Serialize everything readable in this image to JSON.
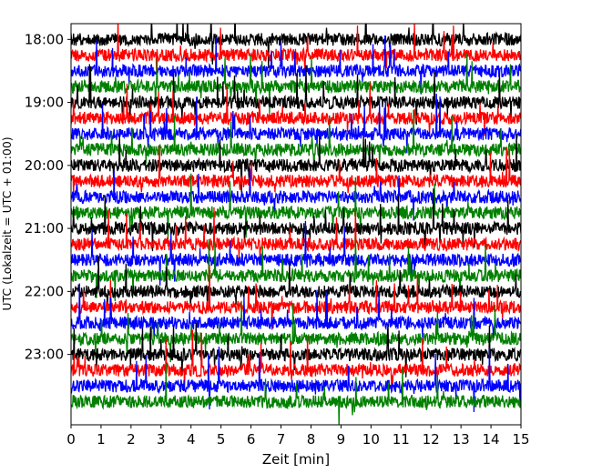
{
  "chart_data": {
    "type": "line",
    "title": "",
    "xlabel": "Zeit  [min]",
    "ylabel": "UTC (Lokalzeit = UTC + 01:00)",
    "xlim": [
      0,
      15
    ],
    "xticks": [
      0,
      1,
      2,
      3,
      4,
      5,
      6,
      7,
      8,
      9,
      10,
      11,
      12,
      13,
      14,
      15
    ],
    "xtick_labels": [
      "0",
      "1",
      "2",
      "3",
      "4",
      "5",
      "6",
      "7",
      "8",
      "9",
      "10",
      "11",
      "12",
      "13",
      "14",
      "15"
    ],
    "y_unit": "minutes of day (UTC)",
    "ylim": [
      1065,
      1447
    ],
    "y_inverted": true,
    "yticks": [
      1080,
      1140,
      1200,
      1260,
      1320,
      1380
    ],
    "ytick_labels": [
      "18:00",
      "19:00",
      "20:00",
      "21:00",
      "22:00",
      "23:00"
    ],
    "row_interval_minutes": 15,
    "row_colors_cycle": [
      "#000000",
      "#ff0000",
      "#0000ff",
      "#008000"
    ],
    "grid": false,
    "legend": "none",
    "description_note": "Helicorder-style seismogram: each horizontal trace spans 15 minutes; rows start every 15 min from 18:00 to 23:45 UTC.",
    "series": [
      {
        "start": "18:00",
        "color": "#000000",
        "offset_utc_minutes": 1080
      },
      {
        "start": "18:15",
        "color": "#ff0000",
        "offset_utc_minutes": 1095
      },
      {
        "start": "18:30",
        "color": "#0000ff",
        "offset_utc_minutes": 1110
      },
      {
        "start": "18:45",
        "color": "#008000",
        "offset_utc_minutes": 1125
      },
      {
        "start": "19:00",
        "color": "#000000",
        "offset_utc_minutes": 1140
      },
      {
        "start": "19:15",
        "color": "#ff0000",
        "offset_utc_minutes": 1155
      },
      {
        "start": "19:30",
        "color": "#0000ff",
        "offset_utc_minutes": 1170
      },
      {
        "start": "19:45",
        "color": "#008000",
        "offset_utc_minutes": 1185
      },
      {
        "start": "20:00",
        "color": "#000000",
        "offset_utc_minutes": 1200
      },
      {
        "start": "20:15",
        "color": "#ff0000",
        "offset_utc_minutes": 1215
      },
      {
        "start": "20:30",
        "color": "#0000ff",
        "offset_utc_minutes": 1230
      },
      {
        "start": "20:45",
        "color": "#008000",
        "offset_utc_minutes": 1245
      },
      {
        "start": "21:00",
        "color": "#000000",
        "offset_utc_minutes": 1260
      },
      {
        "start": "21:15",
        "color": "#ff0000",
        "offset_utc_minutes": 1275
      },
      {
        "start": "21:30",
        "color": "#0000ff",
        "offset_utc_minutes": 1290
      },
      {
        "start": "21:45",
        "color": "#008000",
        "offset_utc_minutes": 1305
      },
      {
        "start": "22:00",
        "color": "#000000",
        "offset_utc_minutes": 1320
      },
      {
        "start": "22:15",
        "color": "#ff0000",
        "offset_utc_minutes": 1335
      },
      {
        "start": "22:30",
        "color": "#0000ff",
        "offset_utc_minutes": 1350
      },
      {
        "start": "22:45",
        "color": "#008000",
        "offset_utc_minutes": 1365
      },
      {
        "start": "23:00",
        "color": "#000000",
        "offset_utc_minutes": 1380
      },
      {
        "start": "23:15",
        "color": "#ff0000",
        "offset_utc_minutes": 1395
      },
      {
        "start": "23:30",
        "color": "#0000ff",
        "offset_utc_minutes": 1410
      },
      {
        "start": "23:45",
        "color": "#008000",
        "offset_utc_minutes": 1425
      }
    ]
  }
}
